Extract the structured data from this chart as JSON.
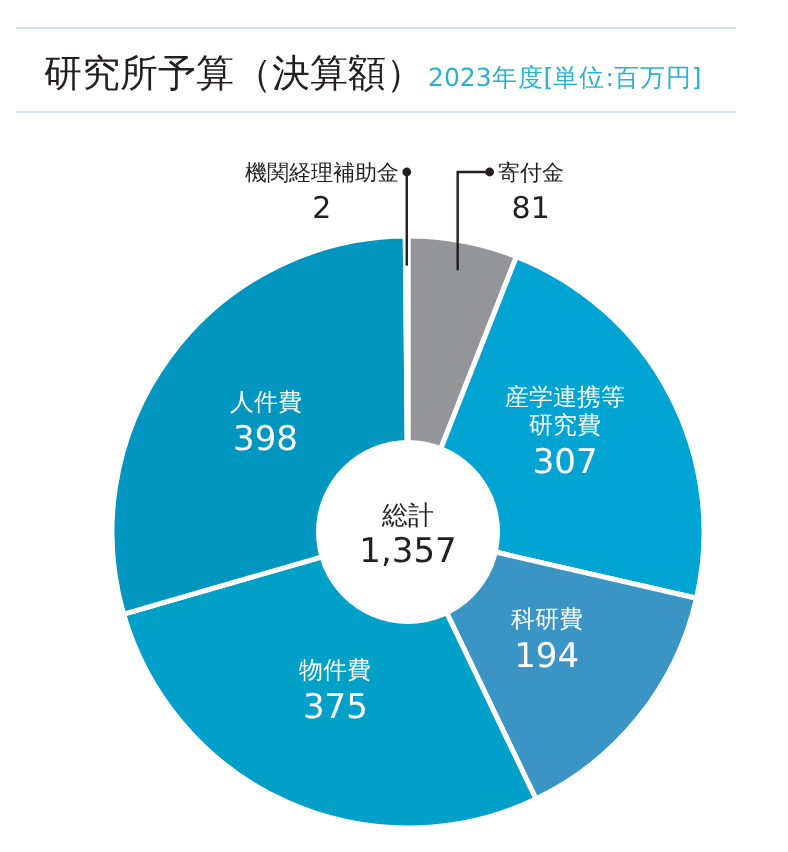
{
  "chart_data": {
    "type": "donut",
    "title": "研究所予算（決算額）",
    "subtitle": "2023年度[単位:百万円]",
    "categories": [
      "寄付金",
      "産学連携等研究費",
      "科研費",
      "物件費",
      "人件費",
      "機関経理補助金"
    ],
    "values": [
      81,
      307,
      194,
      375,
      398,
      2
    ],
    "colors": [
      "#939598",
      "#00a4d3",
      "#3a94c4",
      "#00a0c8",
      "#0096bf",
      "#1aa0c8"
    ],
    "data_labels": true,
    "annotations": [
      "総計",
      "1,357"
    ]
  }
}
